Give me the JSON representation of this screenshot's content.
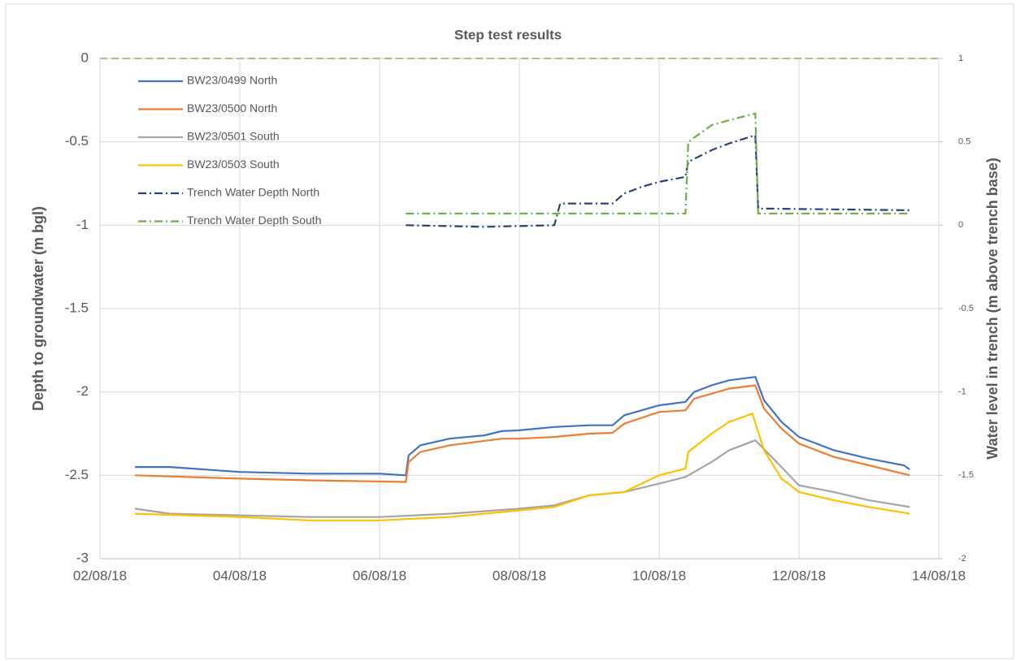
{
  "chart_data": {
    "type": "line",
    "title": "Step test results",
    "y_label": "Depth to groundwater (m bgl)",
    "y2_label": "Water level in trench (m above trench base)",
    "xlim": [
      "2018-08-02T00:00",
      "2018-08-14T00:00"
    ],
    "xticks": [
      {
        "value": "2018-08-02T00:00",
        "label": "02/08/18"
      },
      {
        "value": "2018-08-04T00:00",
        "label": "04/08/18"
      },
      {
        "value": "2018-08-06T00:00",
        "label": "06/08/18"
      },
      {
        "value": "2018-08-08T00:00",
        "label": "08/08/18"
      },
      {
        "value": "2018-08-10T00:00",
        "label": "10/08/18"
      },
      {
        "value": "2018-08-12T00:00",
        "label": "12/08/18"
      },
      {
        "value": "2018-08-14T00:00",
        "label": "14/08/18"
      }
    ],
    "ylim": [
      -3,
      0
    ],
    "yticks": [
      0,
      -0.5,
      -1,
      -1.5,
      -2,
      -2.5,
      -3
    ],
    "y2lim": [
      -2,
      1
    ],
    "y2ticks": [
      1,
      0.5,
      0,
      -0.5,
      -1,
      -1.5,
      -2
    ],
    "grid": true,
    "legend": "top-left",
    "series": [
      {
        "name": "BW23/0499 North",
        "color": "#4472c4",
        "dash": "solid",
        "x": [
          "2018-08-02T12:00",
          "2018-08-03T00:00",
          "2018-08-04T00:00",
          "2018-08-05T00:00",
          "2018-08-06T00:00",
          "2018-08-06T09:00",
          "2018-08-06T10:00",
          "2018-08-06T14:00",
          "2018-08-07T00:00",
          "2018-08-07T12:00",
          "2018-08-07T18:00",
          "2018-08-08T00:00",
          "2018-08-08T12:00",
          "2018-08-09T00:00",
          "2018-08-09T08:00",
          "2018-08-09T12:00",
          "2018-08-10T00:00",
          "2018-08-10T09:00",
          "2018-08-10T12:00",
          "2018-08-10T18:00",
          "2018-08-11T00:00",
          "2018-08-11T09:00",
          "2018-08-11T12:00",
          "2018-08-11T18:00",
          "2018-08-12T00:00",
          "2018-08-12T12:00",
          "2018-08-13T00:00",
          "2018-08-13T12:00",
          "2018-08-13T14:00"
        ],
        "values": [
          -2.45,
          -2.45,
          -2.48,
          -2.49,
          -2.49,
          -2.5,
          -2.38,
          -2.32,
          -2.28,
          -2.26,
          -2.235,
          -2.23,
          -2.21,
          -2.2,
          -2.2,
          -2.14,
          -2.08,
          -2.06,
          -2.0,
          -1.96,
          -1.93,
          -1.91,
          -2.05,
          -2.18,
          -2.27,
          -2.35,
          -2.4,
          -2.44,
          -2.465
        ]
      },
      {
        "name": "BW23/0500 North",
        "color": "#ed7d31",
        "dash": "solid",
        "x": [
          "2018-08-02T12:00",
          "2018-08-04T00:00",
          "2018-08-05T00:00",
          "2018-08-06T09:00",
          "2018-08-06T10:00",
          "2018-08-06T14:00",
          "2018-08-07T00:00",
          "2018-08-07T18:00",
          "2018-08-08T00:00",
          "2018-08-08T12:00",
          "2018-08-09T00:00",
          "2018-08-09T08:00",
          "2018-08-09T12:00",
          "2018-08-10T00:00",
          "2018-08-10T09:00",
          "2018-08-10T12:00",
          "2018-08-11T00:00",
          "2018-08-11T09:00",
          "2018-08-11T12:00",
          "2018-08-11T18:00",
          "2018-08-12T00:00",
          "2018-08-12T12:00",
          "2018-08-13T00:00",
          "2018-08-13T14:00"
        ],
        "values": [
          -2.5,
          -2.52,
          -2.53,
          -2.54,
          -2.42,
          -2.36,
          -2.32,
          -2.28,
          -2.28,
          -2.27,
          -2.25,
          -2.245,
          -2.19,
          -2.12,
          -2.11,
          -2.04,
          -1.98,
          -1.96,
          -2.1,
          -2.22,
          -2.31,
          -2.39,
          -2.44,
          -2.5
        ]
      },
      {
        "name": "BW23/0501 South",
        "color": "#a5a5a5",
        "dash": "solid",
        "x": [
          "2018-08-02T12:00",
          "2018-08-03T00:00",
          "2018-08-04T00:00",
          "2018-08-05T00:00",
          "2018-08-06T00:00",
          "2018-08-07T00:00",
          "2018-08-08T00:00",
          "2018-08-08T12:00",
          "2018-08-09T00:00",
          "2018-08-09T12:00",
          "2018-08-10T00:00",
          "2018-08-10T09:00",
          "2018-08-10T18:00",
          "2018-08-11T00:00",
          "2018-08-11T09:00",
          "2018-08-11T18:00",
          "2018-08-12T00:00",
          "2018-08-12T12:00",
          "2018-08-13T00:00",
          "2018-08-13T14:00"
        ],
        "values": [
          -2.7,
          -2.73,
          -2.74,
          -2.75,
          -2.75,
          -2.73,
          -2.7,
          -2.68,
          -2.62,
          -2.6,
          -2.55,
          -2.51,
          -2.42,
          -2.35,
          -2.29,
          -2.45,
          -2.56,
          -2.6,
          -2.65,
          -2.69
        ]
      },
      {
        "name": "BW23/0503 South",
        "color": "#ffc000",
        "dash": "solid",
        "x": [
          "2018-08-02T12:00",
          "2018-08-04T00:00",
          "2018-08-05T00:00",
          "2018-08-06T00:00",
          "2018-08-07T00:00",
          "2018-08-08T00:00",
          "2018-08-08T12:00",
          "2018-08-09T00:00",
          "2018-08-09T12:00",
          "2018-08-10T00:00",
          "2018-08-10T09:00",
          "2018-08-10T10:00",
          "2018-08-10T18:00",
          "2018-08-11T00:00",
          "2018-08-11T08:00",
          "2018-08-11T12:00",
          "2018-08-11T18:00",
          "2018-08-12T00:00",
          "2018-08-12T12:00",
          "2018-08-13T00:00",
          "2018-08-13T14:00"
        ],
        "values": [
          -2.73,
          -2.75,
          -2.77,
          -2.77,
          -2.75,
          -2.71,
          -2.69,
          -2.62,
          -2.6,
          -2.5,
          -2.46,
          -2.36,
          -2.25,
          -2.18,
          -2.13,
          -2.35,
          -2.52,
          -2.6,
          -2.65,
          -2.69,
          -2.73
        ]
      },
      {
        "name": "Trench Water Depth North",
        "color": "#264478",
        "dash": "dashdot",
        "axis": "y2",
        "x": [
          "2018-08-06T09:00",
          "2018-08-07T12:00",
          "2018-08-08T12:00",
          "2018-08-08T14:00",
          "2018-08-09T08:00",
          "2018-08-09T12:00",
          "2018-08-09T18:00",
          "2018-08-10T00:00",
          "2018-08-10T09:00",
          "2018-08-10T10:00",
          "2018-08-10T18:00",
          "2018-08-11T00:00",
          "2018-08-11T09:00",
          "2018-08-11T10:00",
          "2018-08-13T14:00"
        ],
        "values": [
          0.0,
          -0.01,
          0.0,
          0.13,
          0.13,
          0.19,
          0.23,
          0.26,
          0.29,
          0.38,
          0.45,
          0.49,
          0.54,
          0.1,
          0.09
        ]
      },
      {
        "name": "Trench Water Depth South",
        "color": "#70ad47",
        "dash": "dashdot",
        "axis": "y2",
        "x": [
          "2018-08-06T09:00",
          "2018-08-10T09:00",
          "2018-08-10T10:00",
          "2018-08-10T18:00",
          "2018-08-11T00:00",
          "2018-08-11T09:00",
          "2018-08-11T10:00",
          "2018-08-13T14:00"
        ],
        "values": [
          0.07,
          0.07,
          0.5,
          0.6,
          0.63,
          0.67,
          0.07,
          0.07
        ]
      }
    ]
  }
}
